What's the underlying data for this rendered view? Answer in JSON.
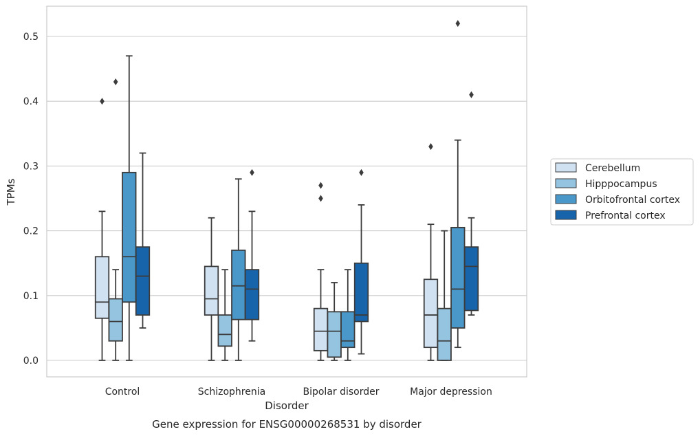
{
  "chart_data": {
    "type": "box",
    "title": "",
    "caption": "Gene expression for ENSG00000268531 by disorder",
    "xlabel": "Disorder",
    "ylabel": "TPMs",
    "ylim": [
      -0.025,
      0.55
    ],
    "yticks": [
      0.0,
      0.1,
      0.2,
      0.3,
      0.4,
      0.5
    ],
    "ytick_labels": [
      "0.0",
      "0.1",
      "0.2",
      "0.3",
      "0.4",
      "0.5"
    ],
    "grid": true,
    "legend_position": "right",
    "categories": [
      "Control",
      "Schizophrenia",
      "Bipolar disorder",
      "Major depression"
    ],
    "series": [
      {
        "name": "Cerebellum",
        "color": "#d0e1f2",
        "boxes": [
          {
            "whisker_low": 0.0,
            "q1": 0.065,
            "median": 0.09,
            "q3": 0.16,
            "whisker_high": 0.23,
            "outliers": [
              0.4
            ]
          },
          {
            "whisker_low": 0.0,
            "q1": 0.07,
            "median": 0.095,
            "q3": 0.145,
            "whisker_high": 0.22,
            "outliers": []
          },
          {
            "whisker_low": 0.0,
            "q1": 0.015,
            "median": 0.045,
            "q3": 0.08,
            "whisker_high": 0.14,
            "outliers": [
              0.25,
              0.27
            ]
          },
          {
            "whisker_low": 0.0,
            "q1": 0.02,
            "median": 0.07,
            "q3": 0.125,
            "whisker_high": 0.21,
            "outliers": [
              0.33
            ]
          }
        ]
      },
      {
        "name": "Hipppocampus",
        "color": "#94c4df",
        "boxes": [
          {
            "whisker_low": 0.0,
            "q1": 0.03,
            "median": 0.06,
            "q3": 0.095,
            "whisker_high": 0.14,
            "outliers": [
              0.43
            ]
          },
          {
            "whisker_low": 0.0,
            "q1": 0.022,
            "median": 0.04,
            "q3": 0.07,
            "whisker_high": 0.14,
            "outliers": []
          },
          {
            "whisker_low": 0.0,
            "q1": 0.005,
            "median": 0.045,
            "q3": 0.075,
            "whisker_high": 0.12,
            "outliers": []
          },
          {
            "whisker_low": 0.0,
            "q1": 0.0,
            "median": 0.03,
            "q3": 0.08,
            "whisker_high": 0.2,
            "outliers": []
          }
        ]
      },
      {
        "name": "Orbitofrontal cortex",
        "color": "#4a98c9",
        "boxes": [
          {
            "whisker_low": 0.0,
            "q1": 0.09,
            "median": 0.16,
            "q3": 0.29,
            "whisker_high": 0.47,
            "outliers": []
          },
          {
            "whisker_low": 0.0,
            "q1": 0.063,
            "median": 0.115,
            "q3": 0.17,
            "whisker_high": 0.28,
            "outliers": []
          },
          {
            "whisker_low": 0.0,
            "q1": 0.02,
            "median": 0.03,
            "q3": 0.075,
            "whisker_high": 0.14,
            "outliers": []
          },
          {
            "whisker_low": 0.02,
            "q1": 0.05,
            "median": 0.11,
            "q3": 0.205,
            "whisker_high": 0.34,
            "outliers": [
              0.52
            ]
          }
        ]
      },
      {
        "name": "Prefrontal cortex",
        "color": "#1764ab",
        "boxes": [
          {
            "whisker_low": 0.05,
            "q1": 0.07,
            "median": 0.13,
            "q3": 0.175,
            "whisker_high": 0.32,
            "outliers": []
          },
          {
            "whisker_low": 0.03,
            "q1": 0.063,
            "median": 0.11,
            "q3": 0.14,
            "whisker_high": 0.23,
            "outliers": [
              0.29
            ]
          },
          {
            "whisker_low": 0.01,
            "q1": 0.06,
            "median": 0.07,
            "q3": 0.15,
            "whisker_high": 0.24,
            "outliers": [
              0.29
            ]
          },
          {
            "whisker_low": 0.07,
            "q1": 0.077,
            "median": 0.145,
            "q3": 0.175,
            "whisker_high": 0.22,
            "outliers": [
              0.41
            ]
          }
        ]
      }
    ]
  }
}
